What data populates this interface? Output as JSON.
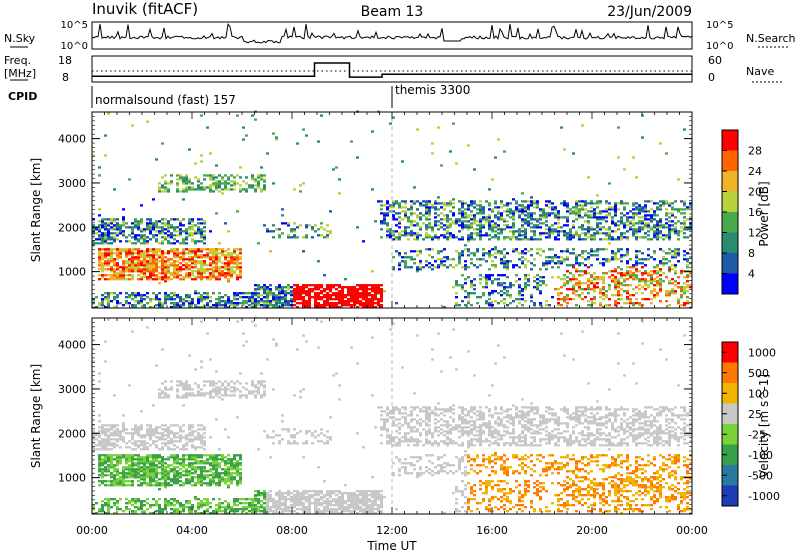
{
  "header": {
    "station": "Inuvik (fitACF)",
    "beam": "Beam 13",
    "date": "23/Jun/2009"
  },
  "top_panel": {
    "left_label": "N.Sky",
    "right_label": "N.Search",
    "left_ticks": [
      "10^5",
      "10^0"
    ],
    "right_ticks": [
      "10^5",
      "10^0"
    ]
  },
  "freq_panel": {
    "left_label_1": "Freq.",
    "left_label_2": "[MHz]",
    "left_ticks": [
      "18",
      "8"
    ],
    "right_label": "Nave",
    "right_ticks": [
      "60",
      "0"
    ],
    "freq_mhz": [
      10.2,
      10.2,
      15.3,
      15.3,
      9.9,
      9.9,
      11.0,
      11.0
    ],
    "freq_hours": [
      0,
      8.9,
      8.9,
      10.3,
      10.3,
      11.6,
      11.6,
      24
    ]
  },
  "cpid": {
    "label": "CPID",
    "mode1": "normalsound (fast) 157",
    "mode2": "themis 3300",
    "switch_hour": 12.0
  },
  "chart_data": [
    {
      "type": "heatmap",
      "name": "power",
      "ylabel": "Slant Range [km]",
      "ylim": [
        180,
        4600
      ],
      "yticks": [
        1000,
        2000,
        3000,
        4000
      ],
      "colorbar_label": "Power [dB]",
      "colorbar_ticks": [
        "28",
        "24",
        "20",
        "16",
        "12",
        "8",
        "4"
      ],
      "colors": [
        "#0000ff",
        "#1e5aa8",
        "#2a8c6e",
        "#4aa84e",
        "#b8d23c",
        "#f0b428",
        "#ff6400",
        "#ff0000"
      ]
    },
    {
      "type": "heatmap",
      "name": "velocity",
      "ylabel": "Slant Range [km]",
      "ylim": [
        180,
        4600
      ],
      "yticks": [
        1000,
        2000,
        3000,
        4000
      ],
      "colorbar_label": "Velocity [m s^-1]",
      "colorbar_ticks": [
        "1000",
        "500",
        "100",
        "25",
        "-25",
        "-100",
        "-500",
        "-1000"
      ],
      "colors": [
        "#1e3cb4",
        "#287aa0",
        "#38a048",
        "#7ad23a",
        "#c8c8c8",
        "#f0b400",
        "#ff7800",
        "#ff0000"
      ]
    }
  ],
  "time_axis": {
    "label": "Time UT",
    "ticks": [
      "00:00",
      "04:00",
      "08:00",
      "12:00",
      "16:00",
      "20:00",
      "00:00"
    ],
    "tick_hours": [
      0,
      4,
      8,
      12,
      16,
      20,
      24
    ]
  }
}
